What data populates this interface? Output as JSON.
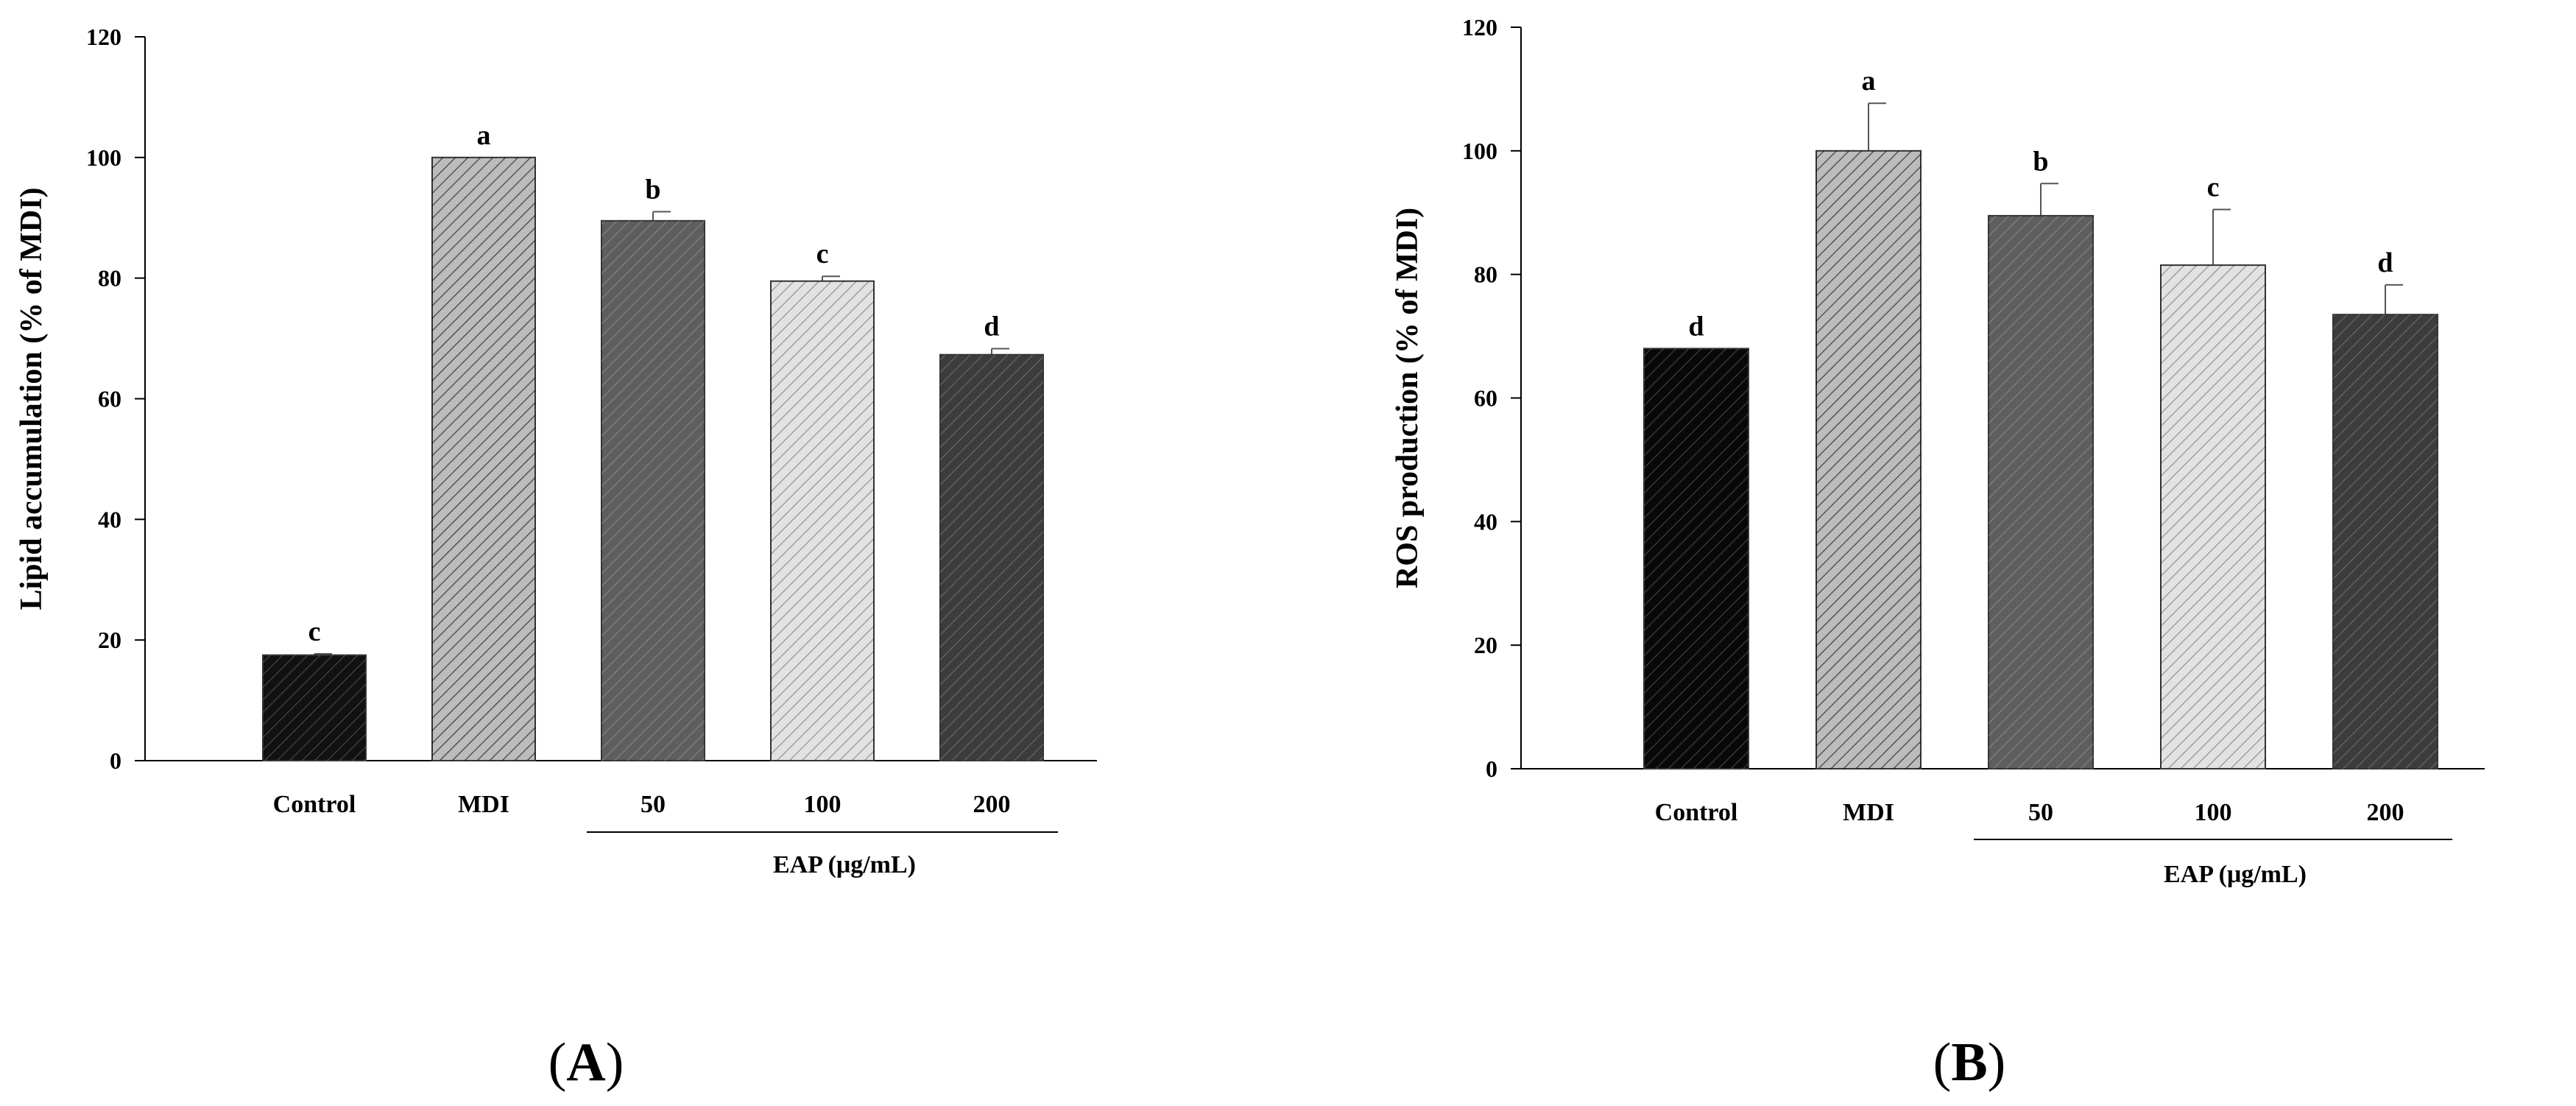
{
  "panels": [
    {
      "label_open": "(",
      "label_letter": "A",
      "label_close": ")"
    },
    {
      "label_open": "(",
      "label_letter": "B",
      "label_close": ")"
    }
  ],
  "chart_data": [
    {
      "type": "bar",
      "panel": "A",
      "categories": [
        "Control",
        "MDI",
        "50",
        "100",
        "200"
      ],
      "values": [
        17.5,
        100,
        89.5,
        79.5,
        67.3
      ],
      "error": [
        0.2,
        0,
        1.5,
        0.8,
        1.0
      ],
      "significance_letters": [
        "c",
        "a",
        "b",
        "c",
        "d"
      ],
      "bar_colors": [
        "#111111",
        "#bcbcbc",
        "#5e5e5e",
        "#e2e2e2",
        "#3c3c3c"
      ],
      "group_label": "EAP (μg/mL)",
      "group_categories": [
        "50",
        "100",
        "200"
      ],
      "title": "",
      "xlabel": "",
      "ylabel": "Lipid accumulation (% of MDI)",
      "ylim": [
        0,
        120
      ],
      "yticks": [
        0,
        20,
        40,
        60,
        80,
        100,
        120
      ],
      "grid": false
    },
    {
      "type": "bar",
      "panel": "B",
      "categories": [
        "Control",
        "MDI",
        "50",
        "100",
        "200"
      ],
      "values": [
        68,
        100,
        89.5,
        81.5,
        73.5
      ],
      "error": [
        0,
        7.7,
        5.2,
        9.0,
        4.8
      ],
      "significance_letters": [
        "d",
        "a",
        "b",
        "c",
        "d"
      ],
      "bar_colors": [
        "#080808",
        "#bcbcbc",
        "#5e5e5e",
        "#e2e2e2",
        "#3c3c3c"
      ],
      "group_label": "EAP (μg/mL)",
      "group_categories": [
        "50",
        "100",
        "200"
      ],
      "title": "",
      "xlabel": "",
      "ylabel": "ROS production (% of MDI)",
      "ylim": [
        0,
        120
      ],
      "yticks": [
        0,
        20,
        40,
        60,
        80,
        100,
        120
      ],
      "grid": false
    }
  ]
}
